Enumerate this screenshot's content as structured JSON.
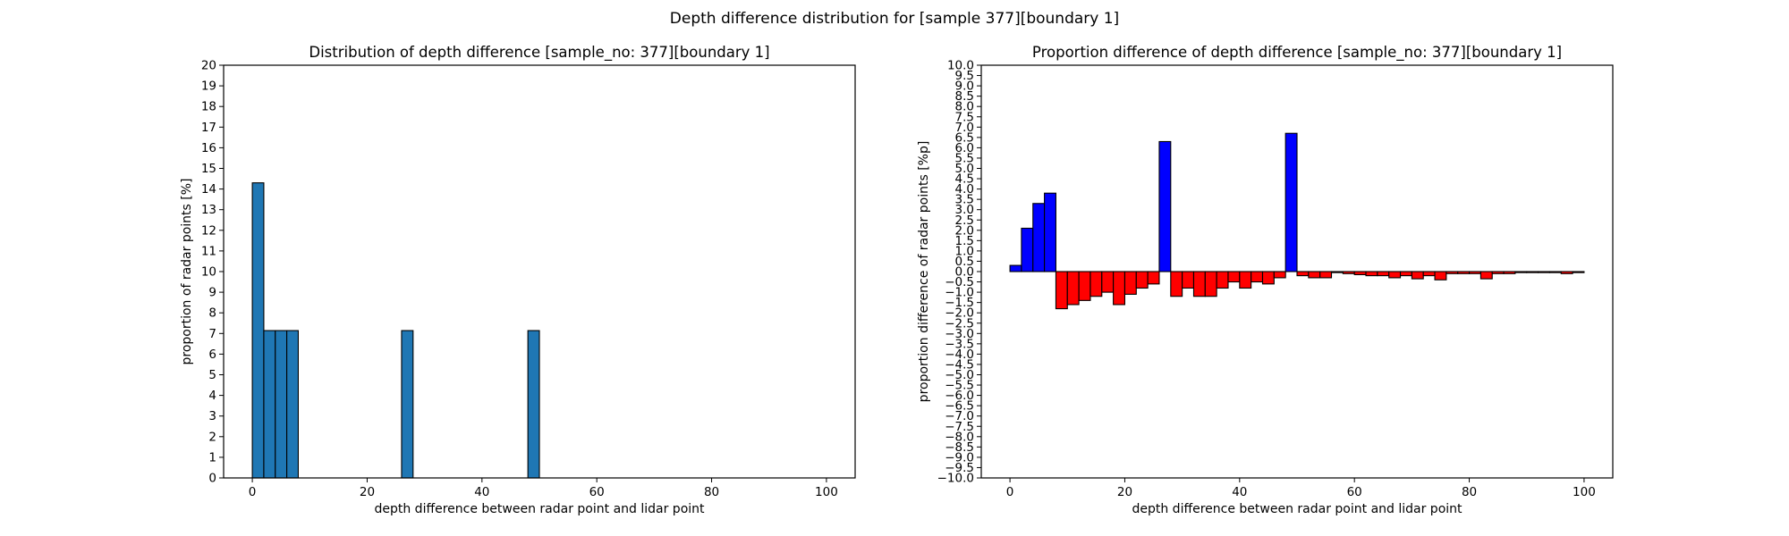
{
  "suptitle": "Depth difference distribution for [sample 377][boundary 1]",
  "chart_data": [
    {
      "type": "bar",
      "title": "Distribution of depth difference [sample_no: 377][boundary 1]",
      "xlabel": "depth difference between radar point and lidar point",
      "ylabel": "proportion of radar points [%]",
      "xlim": [
        -5,
        105
      ],
      "ylim": [
        0,
        20
      ],
      "xticks": [
        0,
        20,
        40,
        60,
        80,
        100
      ],
      "yticks": [
        0,
        1,
        2,
        3,
        4,
        5,
        6,
        7,
        8,
        9,
        10,
        11,
        12,
        13,
        14,
        15,
        16,
        17,
        18,
        19,
        20
      ],
      "bin_width": 2,
      "bar_color": "#1f77b4",
      "edge_color": "#000000",
      "x": [
        0,
        2,
        4,
        6,
        26,
        48
      ],
      "values": [
        14.3,
        7.14,
        7.14,
        7.14,
        7.14,
        7.14
      ]
    },
    {
      "type": "bar",
      "title": "Proportion difference of depth difference [sample_no: 377][boundary 1]",
      "xlabel": "depth difference between radar point and lidar point",
      "ylabel": "proportion difference of radar points [%p]",
      "xlim": [
        -5,
        105
      ],
      "ylim": [
        -10,
        10
      ],
      "xticks": [
        0,
        20,
        40,
        60,
        80,
        100
      ],
      "yticks": [
        -10,
        -9.5,
        -9,
        -8.5,
        -8,
        -7.5,
        -7,
        -6.5,
        -6,
        -5.5,
        -5,
        -4.5,
        -4,
        -3.5,
        -3,
        -2.5,
        -2,
        -1.5,
        -1,
        -0.5,
        0,
        0.5,
        1,
        1.5,
        2,
        2.5,
        3,
        3.5,
        4,
        4.5,
        5,
        5.5,
        6,
        6.5,
        7,
        7.5,
        8,
        8.5,
        9,
        9.5,
        10
      ],
      "bin_width": 2,
      "positive_color": "#0000ff",
      "negative_color": "#ff0000",
      "edge_color": "#000000",
      "x": [
        0,
        2,
        4,
        6,
        8,
        10,
        12,
        14,
        16,
        18,
        20,
        22,
        24,
        26,
        28,
        30,
        32,
        34,
        36,
        38,
        40,
        42,
        44,
        46,
        48,
        50,
        52,
        54,
        56,
        58,
        60,
        62,
        64,
        66,
        68,
        70,
        72,
        74,
        76,
        78,
        80,
        82,
        84,
        86,
        88,
        90,
        92,
        94,
        96,
        98
      ],
      "values": [
        0.3,
        2.1,
        3.3,
        3.8,
        -1.8,
        -1.6,
        -1.4,
        -1.2,
        -1.0,
        -1.6,
        -1.1,
        -0.8,
        -0.6,
        6.3,
        -1.2,
        -0.8,
        -1.2,
        -1.2,
        -0.8,
        -0.5,
        -0.8,
        -0.5,
        -0.6,
        -0.3,
        6.7,
        -0.2,
        -0.3,
        -0.3,
        -0.05,
        -0.1,
        -0.15,
        -0.2,
        -0.2,
        -0.3,
        -0.2,
        -0.35,
        -0.2,
        -0.4,
        -0.1,
        -0.1,
        -0.1,
        -0.35,
        -0.1,
        -0.1,
        -0.05,
        -0.05,
        -0.05,
        -0.05,
        -0.1,
        -0.05
      ]
    }
  ]
}
